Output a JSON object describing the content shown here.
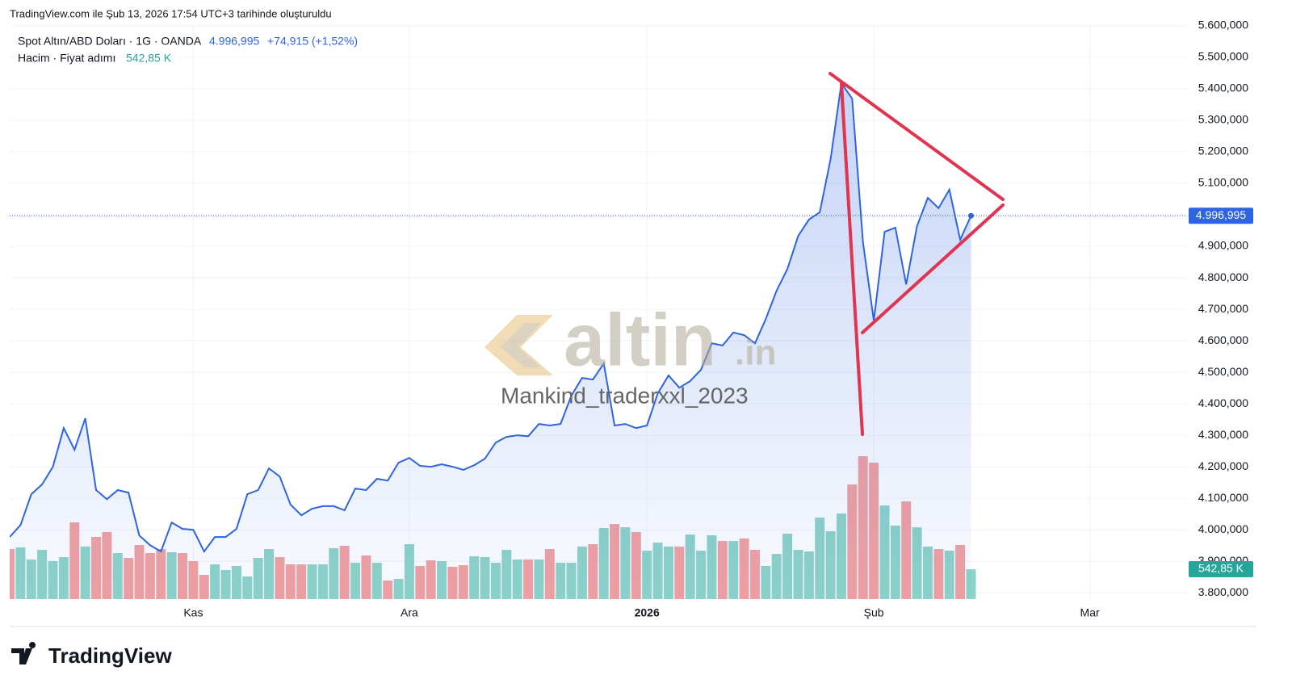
{
  "header": "TradingView.com ile Şub 13, 2026 17:54 UTC+3 tarihinde oluşturuldu",
  "logo": "TradingView",
  "watermark": {
    "brand": "altin",
    "brand_suffix": ".in",
    "author": "Mankind_traderxxl_2023"
  },
  "chart_data": {
    "type": "line",
    "x": [
      0,
      1,
      2,
      3,
      4,
      5,
      6,
      7,
      8,
      9,
      10,
      11,
      12,
      13,
      14,
      15,
      16,
      17,
      18,
      19,
      20,
      21,
      22,
      23,
      24,
      25,
      26,
      27,
      28,
      29,
      30,
      31,
      32,
      33,
      34,
      35,
      36,
      37,
      38,
      39,
      40,
      41,
      42,
      43,
      44,
      45,
      46,
      47,
      48,
      49,
      50,
      51,
      52,
      53,
      54,
      55,
      56,
      57,
      58,
      59,
      60,
      61,
      62,
      63,
      64,
      65,
      66,
      67,
      68,
      69,
      70,
      71,
      72,
      73,
      74,
      75,
      76,
      77,
      78,
      79,
      80,
      81,
      82,
      83,
      84,
      85,
      86,
      87,
      88,
      89
    ],
    "xlim": [
      0,
      109
    ],
    "xticks": [
      {
        "value": 17,
        "label": "Kas"
      },
      {
        "value": 37,
        "label": "Ara"
      },
      {
        "value": 59,
        "label": "2026"
      },
      {
        "value": 80,
        "label": "Şub"
      },
      {
        "value": 100,
        "label": "Mar"
      }
    ],
    "ylim": [
      3780,
      5605
    ],
    "yticks": [
      {
        "value": 3800,
        "label": "3.800,000"
      },
      {
        "value": 3900,
        "label": "3.900,000"
      },
      {
        "value": 4000,
        "label": "4.000,000"
      },
      {
        "value": 4100,
        "label": "4.100,000"
      },
      {
        "value": 4200,
        "label": "4.200,000"
      },
      {
        "value": 4300,
        "label": "4.300,000"
      },
      {
        "value": 4400,
        "label": "4.400,000"
      },
      {
        "value": 4500,
        "label": "4.500,000"
      },
      {
        "value": 4600,
        "label": "4.600,000"
      },
      {
        "value": 4700,
        "label": "4.700,000"
      },
      {
        "value": 4800,
        "label": "4.800,000"
      },
      {
        "value": 4900,
        "label": "4.900,000"
      },
      {
        "value": 5000,
        "label": "5.000,000"
      },
      {
        "value": 5100,
        "label": "5.100,000"
      },
      {
        "value": 5200,
        "label": "5.200,000"
      },
      {
        "value": 5300,
        "label": "5.300,000"
      },
      {
        "value": 5400,
        "label": "5.400,000"
      },
      {
        "value": 5500,
        "label": "5.500,000"
      },
      {
        "value": 5600,
        "label": "5.600,000"
      }
    ],
    "vlim": [
      0,
      5000
    ],
    "grid": true,
    "series": [
      {
        "name": "Spot Altın/ABD Doları · 1G · OANDA",
        "color": "#2f64e0",
        "last_value_label": "4.996,995",
        "change_label": "+74,915 (+1,52%)",
        "values": [
          3977,
          4015,
          4113,
          4144,
          4200,
          4323,
          4254,
          4354,
          4126,
          4097,
          4126,
          4118,
          3982,
          3951,
          3931,
          4023,
          4003,
          4000,
          3931,
          3977,
          3977,
          4003,
          4113,
          4126,
          4195,
          4169,
          4080,
          4046,
          4067,
          4075,
          4075,
          4062,
          4131,
          4126,
          4162,
          4156,
          4213,
          4228,
          4203,
          4200,
          4208,
          4200,
          4190,
          4205,
          4226,
          4277,
          4295,
          4300,
          4297,
          4336,
          4331,
          4336,
          4426,
          4482,
          4477,
          4528,
          4331,
          4336,
          4323,
          4331,
          4433,
          4490,
          4451,
          4472,
          4508,
          4592,
          4585,
          4626,
          4618,
          4592,
          4669,
          4759,
          4828,
          4933,
          4985,
          5008,
          5177,
          5418,
          5369,
          4913,
          4664,
          4946,
          4959,
          4779,
          4964,
          5054,
          5021,
          5080,
          4921,
          4996.995
        ]
      },
      {
        "name": "Hacim · Fiyat adımı",
        "type": "bar",
        "color": "#26a69a",
        "up_color": "#8ed3c9",
        "down_color": "#f2a1a1",
        "last_value_label": "542,85 K",
        "values": [
          911,
          941,
          720,
          897,
          691,
          764,
          1397,
          956,
          1132,
          1220,
          838,
          750,
          985,
          838,
          911,
          853,
          838,
          691,
          441,
          632,
          529,
          603,
          412,
          750,
          911,
          764,
          632,
          632,
          632,
          632,
          926,
          970,
          662,
          794,
          662,
          338,
          368,
          1000,
          603,
          706,
          691,
          588,
          617,
          779,
          764,
          662,
          897,
          720,
          720,
          720,
          911,
          662,
          662,
          956,
          1000,
          1294,
          1367,
          1308,
          1220,
          882,
          1029,
          956,
          956,
          1176,
          882,
          1161,
          1058,
          1058,
          1103,
          897,
          603,
          823,
          1191,
          897,
          867,
          1485,
          1235,
          1558,
          2087,
          2602,
          2484,
          1705,
          1338,
          1779,
          1308,
          956,
          911,
          882,
          985,
          542.85
        ]
      }
    ]
  }
}
